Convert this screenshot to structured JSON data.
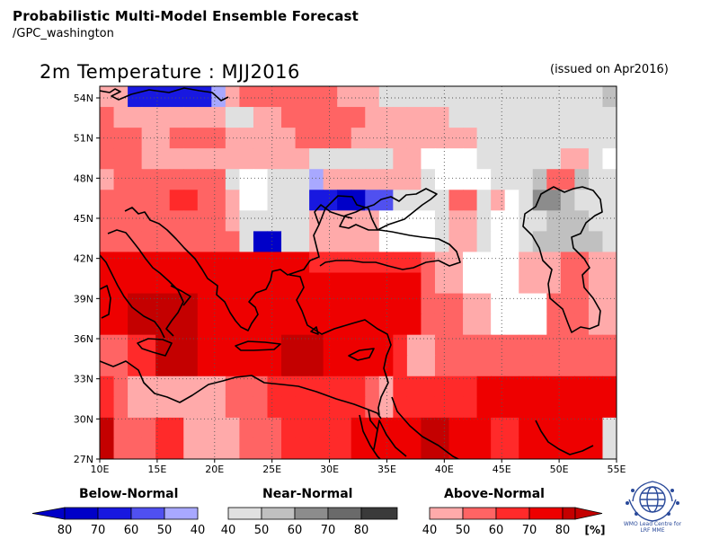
{
  "header": {
    "title": "Probabilistic Multi-Model Ensemble Forecast",
    "subtitle": "/GPC_washington"
  },
  "plot": {
    "title": "2m Temperature : MJJ2016",
    "issued": "(issued on Apr2016)"
  },
  "axes": {
    "x_ticks": [
      "10E",
      "15E",
      "20E",
      "25E",
      "30E",
      "35E",
      "40E",
      "45E",
      "50E",
      "55E"
    ],
    "y_ticks": [
      "54N",
      "51N",
      "48N",
      "45N",
      "42N",
      "39N",
      "36N",
      "33N",
      "30N",
      "27N"
    ]
  },
  "colors": {
    "W": "#ffffff",
    "N1": "#e0e0e0",
    "N2": "#c0c0c0",
    "N3": "#8c8c8c",
    "N4": "#6a6a6a",
    "B1": "#a8a8ff",
    "B2": "#5050f0",
    "B3": "#1818e0",
    "B4": "#0000c8",
    "A1": "#ffaaaa",
    "A2": "#ff6464",
    "A3": "#ff2a2a",
    "A4": "#ee0000",
    "A5": "#c40000"
  },
  "grid_rows": [
    "A1 A1 B3 B3 B3 B3 B3 B3 B1 A1 A2 A2 A2 A2 A2 A2 A2 A1 A1 A1 N1 N1 N1 N1 N1 N1 N1 N1 N1 N1 N1 N1 N1 N1 N1 N1 N2",
    "A2 A1 A1 A1 A1 A1 A1 A1 A1 N1 N1 A1 A1 A2 A2 A2 A2 A2 A2 A1 A1 A1 A1 A1 A1 N1 N1 N1 N1 N1 N1 N1 N1 N1 N1 N1 N1",
    "A2 A2 A2 A1 A1 A2 A2 A2 A2 A1 A1 A1 A1 A1 A2 A2 A2 A2 A1 A1 A1 A1 A1 A1 A1 A1 A1 N1 N1 N1 N1 N1 N1 N1 N1 N1 N1",
    "A2 A2 A2 A1 A1 A1 A1 A1 A1 A1 A1 A1 A1 A1 A1 N1 N1 N1 N1 N1 N1 A1 A1 W  W  W  W  N1 N1 N1 N1 N1 N1 A1 A1 N1 W",
    "A1 A2 A2 A2 A2 A2 A2 A2 A2 N1 W  W  N1 N1 N1 B1 A1 A1 A1 A1 A1 A1 A1 N1 W  W  W  W  N1 N1 N1 N2 A2 A2 N2 N1 N1",
    "A2 A2 A2 A2 A2 A3 A3 A2 A2 A1 W  W  N1 N1 N1 B3 B3 B4 B4 B2 B2 N1 N1 N1 N1 A2 A2 N1 A1 W  N1 N3 N3 N2 N1 N1 N1",
    "A2 A2 A2 A2 A2 A2 A2 A2 A2 A1 N1 N1 N1 N1 N1 A1 A1 A1 A1 A1 W  W  W  W  N1 A1 A1 N1 W  W  N1 N1 N2 N2 N2 N1 N1",
    "A2 A2 A2 A2 A2 A2 A2 A2 A2 A2 N1 B4 B4 N1 N1 A1 A1 A1 A1 A1 W  W  W  W  N1 A1 A1 N1 W  W  N1 N2 N2 N2 N2 N2 N1",
    "A4 A4 A4 A4 A4 A4 A4 A4 A4 A4 A4 A4 A4 A4 A4 A3 A3 A3 A3 A3 A3 A3 A3 A2 A1 A1 W  W  W  W  A1 A1 A1 A2 A2 A1 A1",
    "A4 A4 A4 A4 A4 A4 A4 A4 A4 A4 A4 A4 A4 A4 A4 A4 A4 A4 A4 A4 A4 A4 A4 A2 A1 A1 W  W  W  W  A1 A1 A1 A2 A2 A1 A1",
    "A4 A4 A5 A5 A5 A5 A5 A4 A4 A4 A4 A4 A4 A4 A4 A4 A4 A4 A4 A4 A4 A4 A4 A2 A2 A2 A1 A1 W  W  W  W  A2 A2 A2 A1 A1",
    "A4 A4 A5 A5 A5 A5 A5 A4 A4 A4 A4 A4 A4 A4 A4 A4 A4 A4 A4 A4 A4 A4 A4 A2 A2 A2 A1 A1 W  W  W  W  A2 A2 A2 A1 A1",
    "A2 A2 A3 A3 A5 A5 A5 A4 A4 A4 A4 A4 A4 A5 A5 A5 A4 A4 A4 A4 A4 A3 A1 A1 A2 A2 A2 A2 A2 A2 A2 A2 A2 A2 A2 A2 A2",
    "A2 A2 A3 A3 A5 A5 A5 A4 A4 A4 A4 A4 A4 A5 A5 A5 A4 A4 A4 A4 A4 A3 A1 A1 A2 A2 A2 A2 A2 A2 A2 A2 A2 A2 A2 A2 A2",
    "A3 A2 A1 A1 A1 A1 A1 A1 A1 A2 A2 A2 A3 A3 A3 A3 A3 A3 A3 A2 A1 A3 A3 A3 A3 A3 A3 A4 A4 A4 A4 A4 A4 A4 A4 A4 A4",
    "A3 A2 A1 A1 A1 A1 A1 A1 A1 A2 A2 A2 A3 A3 A3 A3 A3 A3 A3 A2 A1 A3 A3 A3 A3 A3 A3 A4 A4 A4 A4 A4 A4 A4 A4 A4 A4",
    "A5 A2 A2 A2 A3 A3 A1 A1 A1 A1 A2 A2 A2 A3 A3 A3 A3 A3 A4 A4 A4 A4 A4 A5 A5 A4 A4 A4 A3 A3 A4 A4 A4 A4 A4 A4 N1",
    "A5 A2 A2 A2 A3 A3 A1 A1 A1 A1 A2 A2 A2 A3 A3 A3 A3 A3 A4 A4 A4 A4 A4 A5 A5 A4 A4 A4 A3 A3 A4 A4 A4 A4 A4 A4 N1"
  ],
  "legend": {
    "below": {
      "label": "Below-Normal",
      "ticks": [
        "80",
        "70",
        "60",
        "50",
        "40"
      ]
    },
    "near": {
      "label": "Near-Normal",
      "ticks": [
        "40",
        "50",
        "60",
        "70",
        "80"
      ]
    },
    "above": {
      "label": "Above-Normal",
      "ticks": [
        "40",
        "50",
        "60",
        "70",
        "80"
      ]
    },
    "unit": "[%]"
  },
  "logo": {
    "icon": "wmo-emblem-icon",
    "text_line1": "WMO Lead Centre for",
    "text_line2": "LRF MME"
  }
}
